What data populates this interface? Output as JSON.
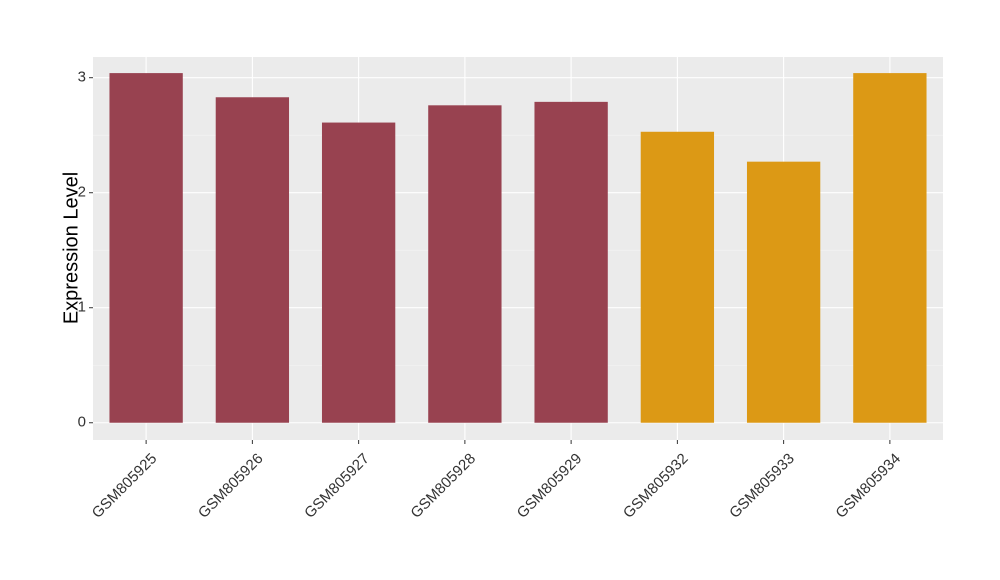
{
  "chart_data": {
    "type": "bar",
    "y_label": "Expression Level",
    "categories": [
      "GSM805925",
      "GSM805926",
      "GSM805927",
      "GSM805928",
      "GSM805929",
      "GSM805932",
      "GSM805933",
      "GSM805934"
    ],
    "values": [
      3.04,
      2.83,
      2.61,
      2.76,
      2.79,
      2.53,
      2.27,
      3.04
    ],
    "colors": [
      "#984250",
      "#984250",
      "#984250",
      "#984250",
      "#984250",
      "#dc9915",
      "#dc9915",
      "#dc9915"
    ],
    "ylim": [
      -0.15,
      3.18
    ],
    "yticks": [
      0,
      1,
      2,
      3
    ],
    "grid": true
  }
}
